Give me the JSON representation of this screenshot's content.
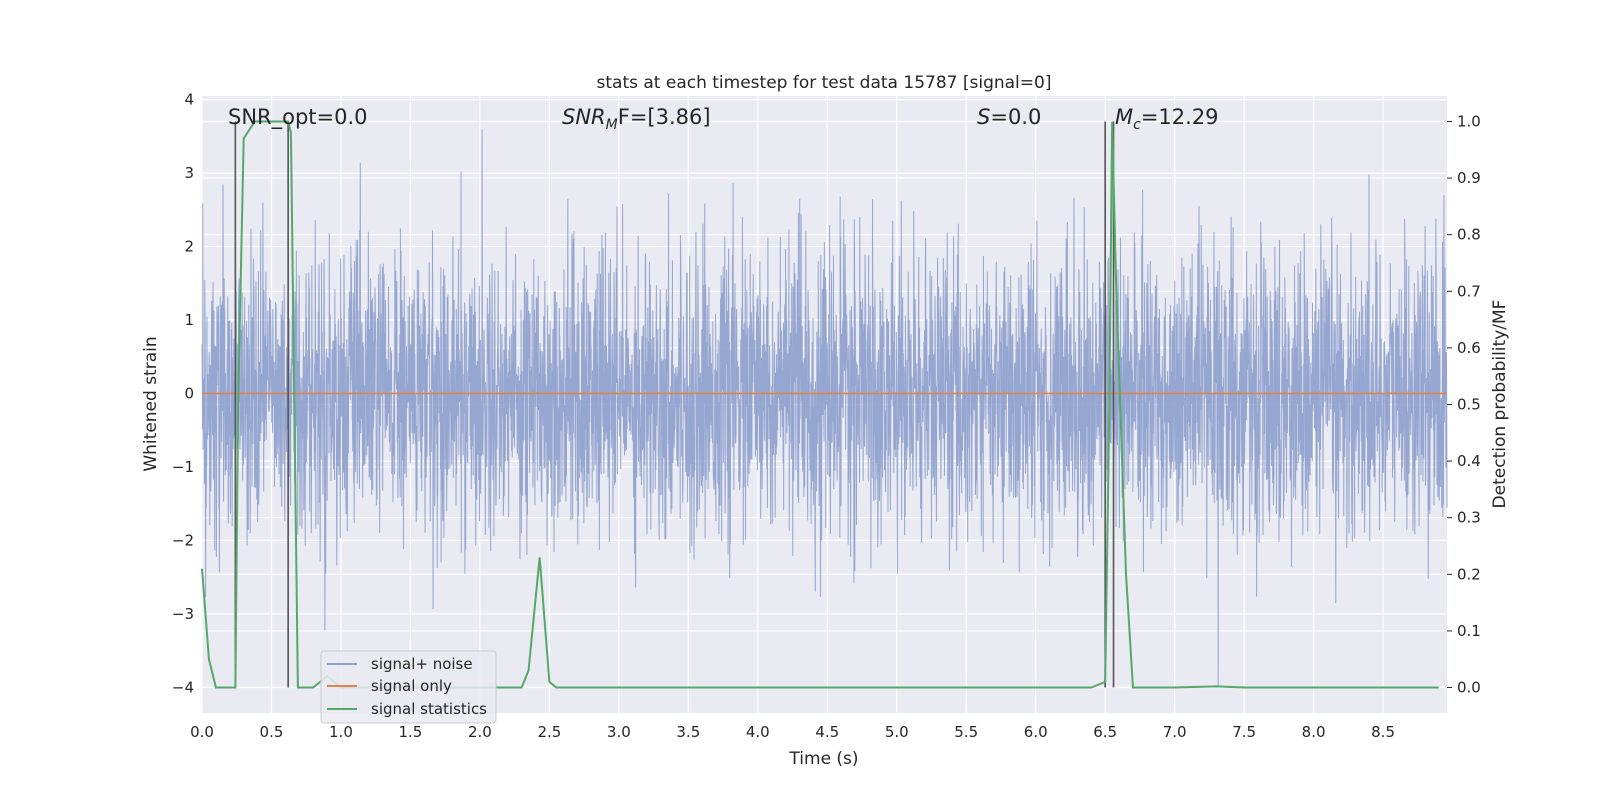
{
  "chart_data": {
    "type": "line",
    "title": "stats at each timestep for test data 15787 [signal=0]",
    "xlabel": "Time (s)",
    "ylabel": "Whitened strain",
    "y2label": "Detection probability/MF",
    "xlim": [
      0.0,
      8.96
    ],
    "ylim": [
      -4.35,
      4.05
    ],
    "y2lim": [
      -0.045,
      1.045
    ],
    "xticks": [
      0.0,
      0.5,
      1.0,
      1.5,
      2.0,
      2.5,
      3.0,
      3.5,
      4.0,
      4.5,
      5.0,
      5.5,
      6.0,
      6.5,
      7.0,
      7.5,
      8.0,
      8.5
    ],
    "xtick_labels": [
      "0.0",
      "0.5",
      "1.0",
      "1.5",
      "2.0",
      "2.5",
      "3.0",
      "3.5",
      "4.0",
      "4.5",
      "5.0",
      "5.5",
      "6.0",
      "6.5",
      "7.0",
      "7.5",
      "8.0",
      "8.5"
    ],
    "yticks": [
      -4,
      -3,
      -2,
      -1,
      0,
      1,
      2,
      3,
      4
    ],
    "ytick_labels": [
      "−4",
      "−3",
      "−2",
      "−1",
      "0",
      "1",
      "2",
      "3",
      "4"
    ],
    "y2ticks": [
      0.0,
      0.1,
      0.2,
      0.3,
      0.4,
      0.5,
      0.6,
      0.7,
      0.8,
      0.9,
      1.0
    ],
    "y2tick_labels": [
      "0.0",
      "0.1",
      "0.2",
      "0.3",
      "0.4",
      "0.5",
      "0.6",
      "0.7",
      "0.8",
      "0.9",
      "1.0"
    ],
    "grid": true,
    "legend_placement": "lower-left",
    "annotations": [
      {
        "text": "SNR_opt=0.0",
        "x": 0.2
      },
      {
        "base": "SNR",
        "sub": "M",
        "rest": "F=[3.86]",
        "x": 2.6
      },
      {
        "base": "S",
        "rest": "=0.0",
        "x": 5.6
      },
      {
        "base": "M",
        "sub": "c",
        "rest": "=12.29",
        "x": 6.6
      }
    ],
    "series": [
      {
        "name": "signal+ noise",
        "color": "#8c9fcc",
        "noise_amplitude_max": 3.7,
        "noise_amplitude_min": -4.0
      },
      {
        "name": "signal only",
        "color": "#dd8452",
        "x": [
          0.0,
          8.96
        ],
        "y": [
          0.0,
          0.0
        ]
      },
      {
        "name": "signal statistics",
        "color": "#55a868",
        "axis": "right",
        "x": [
          0.0,
          0.05,
          0.1,
          0.2,
          0.24,
          0.26,
          0.3,
          0.38,
          0.5,
          0.62,
          0.64,
          0.69,
          0.8,
          0.9,
          1.0,
          1.5,
          2.0,
          2.2,
          2.3,
          2.35,
          2.43,
          2.5,
          2.55,
          3.0,
          4.0,
          5.0,
          6.0,
          6.4,
          6.5,
          6.53,
          6.55,
          6.58,
          6.65,
          6.7,
          7.0,
          7.3,
          7.5,
          8.0,
          8.5,
          8.9
        ],
        "y": [
          0.21,
          0.05,
          0.0,
          0.0,
          0.0,
          0.5,
          0.97,
          1.0,
          1.0,
          1.0,
          0.98,
          0.0,
          0.0,
          0.02,
          0.0,
          0.0,
          0.0,
          0.0,
          0.0,
          0.03,
          0.23,
          0.01,
          0.0,
          0.0,
          0.0,
          0.0,
          0.0,
          0.0,
          0.01,
          0.5,
          1.0,
          0.7,
          0.2,
          0.0,
          0.0,
          0.002,
          0.0,
          0.0,
          0.0,
          0.0
        ]
      }
    ],
    "vertical_lines": {
      "color": "#555555",
      "x": [
        0.24,
        0.62,
        6.5,
        6.56
      ]
    }
  }
}
